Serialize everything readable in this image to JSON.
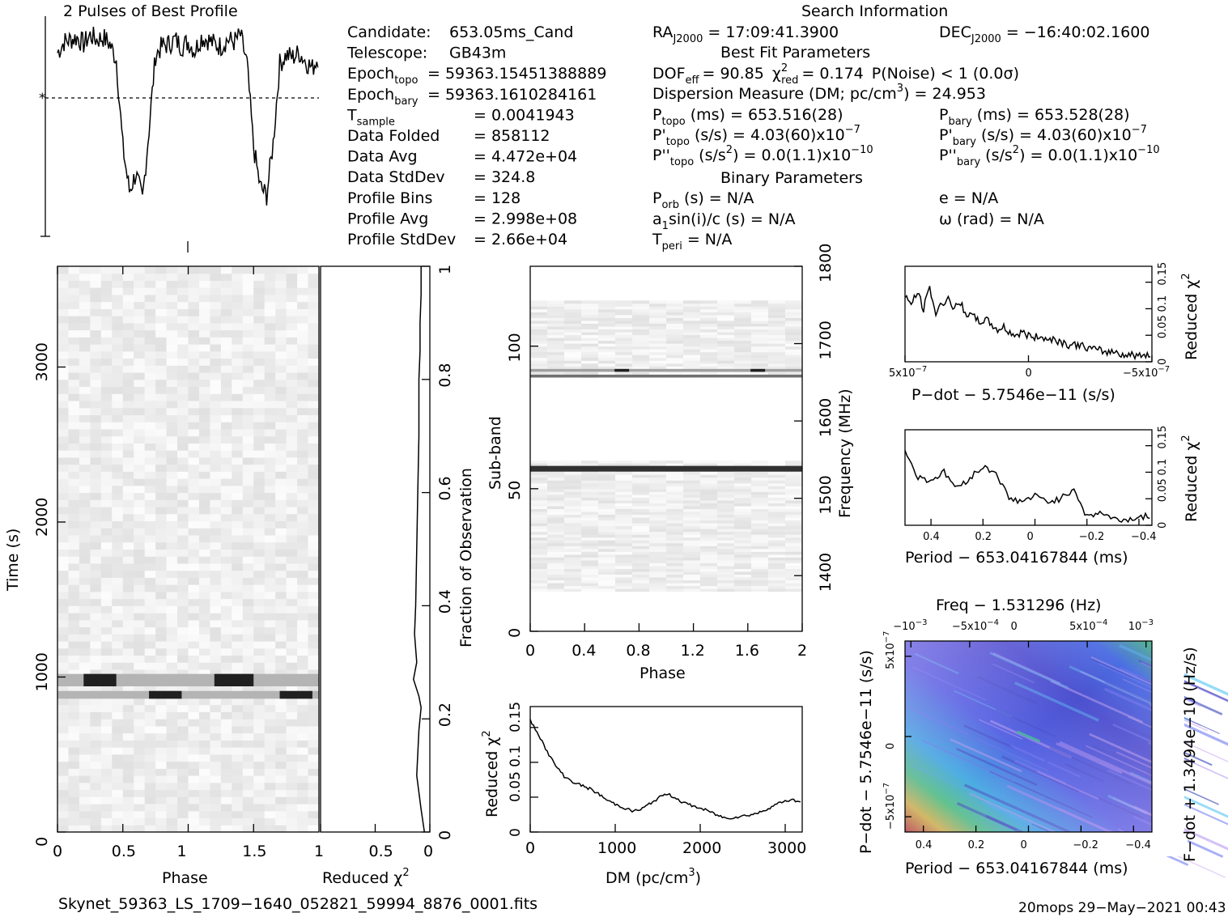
{
  "header": {
    "profile_title": "2 Pulses of Best Profile",
    "search_title": "Search Information"
  },
  "candidate_info": [
    {
      "label": "Candidate:",
      "value": "653.05ms_Cand"
    },
    {
      "label": "Telescope:",
      "value": "GB43m"
    },
    {
      "label": "Epoch",
      "sub": "topo",
      "value": "= 59363.15451388889"
    },
    {
      "label": "Epoch",
      "sub": "bary",
      "value": "= 59363.1610284161"
    },
    {
      "label": "T",
      "sub": "sample",
      "value": "=   0.0041943"
    },
    {
      "label": "Data Folded",
      "value": "=   858112"
    },
    {
      "label": "Data Avg",
      "value": "=   4.472e+04"
    },
    {
      "label": "Data StdDev",
      "value": "=   324.8"
    },
    {
      "label": "Profile Bins",
      "value": "=   128"
    },
    {
      "label": "Profile Avg",
      "value": "=   2.998e+08"
    },
    {
      "label": "Profile StdDev",
      "value": "=   2.66e+04"
    }
  ],
  "search_info": {
    "ra": {
      "label": "RA",
      "sub": "J2000",
      "value": "= 17:09:41.3900"
    },
    "dec": {
      "label": "DEC",
      "sub": "J2000",
      "value": "= −16:40:02.1600"
    },
    "best_fit_title": "Best Fit Parameters",
    "dof": "DOF",
    "dof_sub": "eff",
    "dof_value": "= 90.85",
    "chi_label": "χ",
    "chi_sup": "2",
    "chi_sub": "red",
    "chi_value": "= 0.174",
    "pnoise": "P(Noise) < 1   (0.0σ)",
    "dm_line": "Dispersion Measure (DM; pc/cm",
    "dm_sup": "3",
    "dm_value": ") = 24.953",
    "ptopo": {
      "label": "P",
      "sub": "topo",
      "value": "(ms) =  653.516(28)"
    },
    "pbary": {
      "label": "P",
      "sub": "bary",
      "value": "(ms) =  653.528(28)"
    },
    "pdtopo": {
      "label": "P'",
      "sub": "topo",
      "value": "(s/s) =  4.03(60)x10",
      "exp": "−7"
    },
    "pdbary": {
      "label": "P'",
      "sub": "bary",
      "value": "(s/s) =  4.03(60)x10",
      "exp": "−7"
    },
    "pddtopo": {
      "label": "P''",
      "sub": "topo",
      "value": "(s/s",
      "sup2": "2",
      "value2": ") = 0.0(1.1)x10",
      "exp": "−10"
    },
    "pddbary": {
      "label": "P''",
      "sub": "bary",
      "value": "(s/s",
      "sup2": "2",
      "value2": ") = 0.0(1.1)x10",
      "exp": "−10"
    },
    "binary_title": "Binary Parameters",
    "porb": {
      "label": "P",
      "sub": "orb",
      "value": "(s) = N/A"
    },
    "ecc": "e = N/A",
    "a1": {
      "label": "a",
      "sub": "1",
      "value": "sin(i)/c (s) = N/A"
    },
    "omega": "ω (rad) = N/A",
    "tperi": {
      "label": "T",
      "sub": "peri",
      "value": "= N/A"
    }
  },
  "footer": {
    "filename": "Skynet_59363_LS_1709−1640_052821_59994_8876_0001.fits",
    "stamp": "20mops 29−May−2021 00:43"
  },
  "chart_data": [
    {
      "name": "profile",
      "type": "line",
      "title": "2 Pulses of Best Profile",
      "xlim": [
        0,
        2
      ],
      "x": [
        0.0,
        0.05,
        0.1,
        0.15,
        0.2,
        0.25,
        0.3,
        0.35,
        0.4,
        0.45,
        0.5,
        0.55,
        0.6,
        0.65,
        0.7,
        0.75,
        0.8,
        0.85,
        0.9,
        0.95,
        1.0,
        1.05,
        1.1,
        1.15,
        1.2,
        1.25,
        1.3,
        1.35,
        1.4,
        1.45,
        1.5,
        1.55,
        1.6,
        1.65,
        1.7,
        1.75,
        1.8,
        1.85,
        1.9,
        1.95,
        2.0
      ],
      "y": [
        0.55,
        0.8,
        0.85,
        0.9,
        0.75,
        0.95,
        0.85,
        0.9,
        0.75,
        0.4,
        -1.6,
        -2.6,
        -2.2,
        -2.8,
        -1.2,
        0.5,
        0.7,
        0.75,
        0.85,
        0.7,
        0.8,
        0.6,
        0.9,
        0.85,
        0.75,
        0.7,
        0.85,
        0.8,
        0.95,
        0.3,
        -1.6,
        -2.5,
        -2.7,
        -1.5,
        0.3,
        0.5,
        0.45,
        0.55,
        0.35,
        0.2,
        0.5
      ],
      "ylim": [
        -3.5,
        1.2
      ]
    },
    {
      "name": "time-phase",
      "type": "heatmap",
      "xlabel": "Phase",
      "ylabel": "Time (s)",
      "xlim": [
        0,
        1
      ],
      "ylim": [
        0,
        3650
      ],
      "xticks": [
        "0",
        "0.5",
        "1",
        "1.5"
      ],
      "yticks": [
        "0",
        "1000",
        "2000",
        "3000"
      ],
      "bright_rows": [
        {
          "t0": 940,
          "t1": 1020,
          "phase_dark": [
            0.2,
            0.45
          ],
          "phase_dark2": [
            1.2,
            1.5
          ]
        },
        {
          "t0": 860,
          "t1": 910,
          "phase_dark": [
            0.7,
            0.95
          ],
          "phase_dark2": [
            1.7,
            1.95
          ]
        }
      ]
    },
    {
      "name": "reduced-chi2-time",
      "type": "line",
      "xlabel": "Reduced χ",
      "ylabel": "Fraction of Observation",
      "xticks": [
        "1",
        "0.5",
        "0"
      ],
      "yticks": [
        "0",
        "0.2",
        "0.4",
        "0.6",
        "0.8",
        "1"
      ],
      "x": [
        0.05,
        0.08,
        0.12,
        0.1,
        0.08,
        0.1,
        0.15,
        0.12,
        0.14,
        0.13,
        0.12,
        0.11,
        0.1,
        0.1,
        0.09,
        0.09,
        0.08,
        0.08
      ],
      "y": [
        0.0,
        0.04,
        0.1,
        0.18,
        0.22,
        0.24,
        0.27,
        0.3,
        0.35,
        0.4,
        0.5,
        0.6,
        0.7,
        0.8,
        0.85,
        0.9,
        0.95,
        1.0
      ]
    },
    {
      "name": "subband-phase",
      "type": "heatmap",
      "xlabel": "Phase",
      "ylabel": "Sub-band",
      "y2label": "Frequency (MHz)",
      "xlim": [
        0,
        2
      ],
      "ylim": [
        0,
        128
      ],
      "xticks": [
        "0",
        "0.4",
        "0.8",
        "1.2",
        "1.6",
        "2"
      ],
      "yticks": [
        "0",
        "50",
        "100"
      ],
      "y2ticks": [
        "1400",
        "1500",
        "1600",
        "1700",
        "1800"
      ],
      "dark_rows": [
        57,
        90,
        92
      ]
    },
    {
      "name": "dm-chi2",
      "type": "line",
      "xlabel": "DM (pc/cm",
      "ylabel": "Reduced χ",
      "xlim": [
        0,
        3200
      ],
      "ylim": [
        0,
        0.18
      ],
      "xticks": [
        "0",
        "1000",
        "2000",
        "3000"
      ],
      "yticks": [
        "0",
        "0.05",
        "0.1",
        "0.15"
      ],
      "x": [
        0,
        100,
        200,
        300,
        400,
        500,
        600,
        700,
        800,
        900,
        1000,
        1100,
        1200,
        1300,
        1400,
        1500,
        1600,
        1700,
        1800,
        1900,
        2000,
        2100,
        2200,
        2300,
        2400,
        2500,
        2600,
        2700,
        2800,
        2900,
        3000,
        3100,
        3200
      ],
      "y": [
        0.16,
        0.14,
        0.115,
        0.095,
        0.08,
        0.072,
        0.067,
        0.062,
        0.055,
        0.046,
        0.04,
        0.035,
        0.03,
        0.032,
        0.04,
        0.048,
        0.055,
        0.05,
        0.042,
        0.038,
        0.034,
        0.03,
        0.024,
        0.02,
        0.021,
        0.023,
        0.025,
        0.028,
        0.034,
        0.04,
        0.045,
        0.046,
        0.042
      ]
    },
    {
      "name": "pdot-chi2",
      "type": "line",
      "xlabel": "P−dot − 5.7546e−11 (s/s)",
      "ylabel": "Reduced χ",
      "xticks": [
        "5x10",
        "0",
        "−5x10"
      ],
      "yticks": [
        "0",
        "0.05",
        "0.1",
        "0.15"
      ],
      "x": [
        1,
        0.95,
        0.9,
        0.85,
        0.8,
        0.75,
        0.7,
        0.65,
        0.6,
        0.55,
        0.5,
        0.45,
        0.4,
        0.35,
        0.3,
        0.25,
        0.2,
        0.15,
        0.1,
        0.05,
        0.0,
        -0.05,
        -0.1,
        -0.15,
        -0.2,
        -0.25,
        -0.3,
        -0.35,
        -0.4,
        -0.45,
        -0.5,
        -0.55,
        -0.6,
        -0.65,
        -0.7,
        -0.75,
        -0.8,
        -0.85,
        -0.9,
        -0.95,
        -1
      ],
      "y": [
        0.12,
        0.11,
        0.13,
        0.1,
        0.14,
        0.09,
        0.11,
        0.12,
        0.1,
        0.11,
        0.09,
        0.085,
        0.075,
        0.08,
        0.07,
        0.06,
        0.065,
        0.055,
        0.05,
        0.055,
        0.05,
        0.045,
        0.05,
        0.04,
        0.045,
        0.038,
        0.035,
        0.03,
        0.033,
        0.028,
        0.025,
        0.022,
        0.02,
        0.018,
        0.02,
        0.015,
        0.012,
        0.014,
        0.01,
        0.015,
        0.012
      ]
    },
    {
      "name": "period-chi2",
      "type": "line",
      "xlabel": "Period − 653.04167844 (ms)",
      "ylabel": "Reduced χ",
      "xlim": [
        0.5,
        -0.45
      ],
      "xticks": [
        "0.4",
        "0.2",
        "0",
        "−0.2",
        "−0.4"
      ],
      "yticks": [
        "0",
        "0.05",
        "0.1",
        "0.15"
      ],
      "x": [
        0.5,
        0.45,
        0.4,
        0.35,
        0.3,
        0.25,
        0.2,
        0.15,
        0.1,
        0.05,
        0.0,
        -0.05,
        -0.1,
        -0.15,
        -0.2,
        -0.25,
        -0.3,
        -0.35,
        -0.4,
        -0.45
      ],
      "y": [
        0.14,
        0.09,
        0.085,
        0.1,
        0.07,
        0.09,
        0.11,
        0.1,
        0.05,
        0.045,
        0.055,
        0.045,
        0.05,
        0.07,
        0.015,
        0.025,
        0.012,
        0.01,
        0.015,
        0.018
      ]
    },
    {
      "name": "p-pdot-plane",
      "type": "heatmap",
      "title": "Freq − 1.531296 (Hz)",
      "xlabel": "Period − 653.04167844 (ms)",
      "ylabel": "P−dot − 5.7546e−11 (s/s)",
      "y2label": "F−dot + 1.3494e−10 (Hz/s)",
      "xticks": [
        "0.4",
        "0.2",
        "0",
        "−0.2",
        "−0.4"
      ],
      "x2ticks": [
        "−10",
        "−5x10",
        "0",
        "5x10",
        "10"
      ],
      "yticks": [
        "5x10",
        "0",
        "−5x10"
      ]
    }
  ]
}
